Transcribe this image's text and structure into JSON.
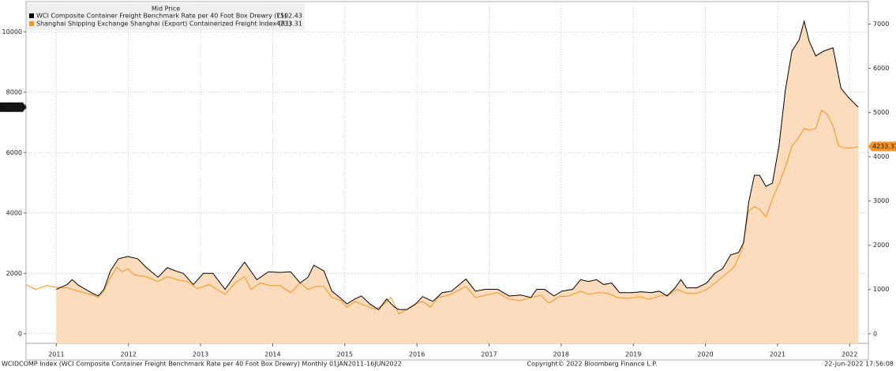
{
  "chart_data": {
    "type": "line",
    "legend_title": "Mid Price",
    "footer_left": "WCIDCOMP Index (WCI Composite Container Freight Benchmark Rate per 40 Foot Box Drewry)  Monthly 01JAN2011-16JUN2022",
    "footer_center": "Copyright© 2022 Bloomberg Finance L.P.",
    "footer_right": "22-Jun-2022 17:56:08",
    "xlim": [
      2011.08,
      2022.76
    ],
    "xticks": [
      {
        "value": 2011.5,
        "label": "2011"
      },
      {
        "value": 2012.5,
        "label": "2012"
      },
      {
        "value": 2013.5,
        "label": "2013"
      },
      {
        "value": 2014.5,
        "label": "2014"
      },
      {
        "value": 2015.5,
        "label": "2015"
      },
      {
        "value": 2016.5,
        "label": "2016"
      },
      {
        "value": 2017.5,
        "label": "2017"
      },
      {
        "value": 2018.5,
        "label": "2018"
      },
      {
        "value": 2019.5,
        "label": "2019"
      },
      {
        "value": 2020.5,
        "label": "2020"
      },
      {
        "value": 2021.5,
        "label": "2021"
      },
      {
        "value": 2022.5,
        "label": "2022"
      }
    ],
    "ylim": [
      -320,
      11000
    ],
    "yticks": [
      0,
      2000,
      4000,
      6000,
      8000,
      10000
    ],
    "y2lim": [
      -218,
      7509
    ],
    "y2ticks": [
      0,
      1000,
      2000,
      3000,
      4000,
      5000,
      6000,
      7000
    ],
    "grid": true,
    "series": [
      {
        "name": "WCI Composite Container Freight Benchmark Rate per 40 Foot Box Drewry  (L1)",
        "color": "#000000",
        "fill": "#fcdcbc",
        "axis": "y",
        "x": [
          2011.5,
          2011.65,
          2011.72,
          2011.81,
          2012.01,
          2012.08,
          2012.16,
          2012.25,
          2012.36,
          2012.49,
          2012.63,
          2012.74,
          2012.91,
          2013.04,
          2013.15,
          2013.26,
          2013.4,
          2013.54,
          2013.67,
          2013.84,
          2013.98,
          2014.11,
          2014.28,
          2014.44,
          2014.6,
          2014.75,
          2014.88,
          2014.99,
          2015.07,
          2015.21,
          2015.32,
          2015.43,
          2015.53,
          2015.64,
          2015.73,
          2015.86,
          2015.97,
          2016.08,
          2016.19,
          2016.25,
          2016.36,
          2016.47,
          2016.58,
          2016.72,
          2016.85,
          2016.98,
          2017.18,
          2017.31,
          2017.45,
          2017.62,
          2017.78,
          2017.94,
          2018.08,
          2018.16,
          2018.27,
          2018.4,
          2018.51,
          2018.66,
          2018.77,
          2018.88,
          2018.99,
          2019.09,
          2019.2,
          2019.31,
          2019.48,
          2019.61,
          2019.75,
          2019.86,
          2019.97,
          2020.08,
          2020.16,
          2020.24,
          2020.38,
          2020.52,
          2020.63,
          2020.74,
          2020.85,
          2020.96,
          2021.03,
          2021.1,
          2021.18,
          2021.25,
          2021.34,
          2021.43,
          2021.52,
          2021.61,
          2021.7,
          2021.8,
          2021.87,
          2021.94,
          2022.03,
          2022.14,
          2022.27,
          2022.38,
          2022.49,
          2022.62
        ],
        "values": [
          1470,
          1630,
          1790,
          1600,
          1330,
          1250,
          1470,
          2080,
          2480,
          2560,
          2480,
          2210,
          1870,
          2190,
          2080,
          2000,
          1630,
          2000,
          2000,
          1470,
          1950,
          2370,
          1790,
          2050,
          2030,
          2050,
          1680,
          1870,
          2270,
          2080,
          1410,
          1200,
          990,
          1150,
          1250,
          960,
          800,
          1150,
          880,
          800,
          800,
          960,
          1230,
          1070,
          1360,
          1410,
          1810,
          1410,
          1470,
          1470,
          1250,
          1280,
          1200,
          1470,
          1470,
          1250,
          1410,
          1470,
          1790,
          1730,
          1790,
          1630,
          1680,
          1360,
          1360,
          1390,
          1360,
          1410,
          1250,
          1520,
          1790,
          1520,
          1520,
          1680,
          2000,
          2160,
          2610,
          2690,
          3010,
          4350,
          5250,
          5250,
          4880,
          4990,
          6210,
          8080,
          9360,
          9730,
          10350,
          9680,
          9200,
          9360,
          9470,
          8130,
          7810,
          7502.43
        ]
      },
      {
        "name": "Shanghai Shipping Exchange Shanghai (Export) Containerized Freight Index  (R1)",
        "color": "#f7931e",
        "axis": "y2",
        "x": [
          2011.08,
          2011.21,
          2011.37,
          2011.5,
          2011.65,
          2011.81,
          2012.01,
          2012.08,
          2012.16,
          2012.25,
          2012.34,
          2012.41,
          2012.49,
          2012.58,
          2012.74,
          2012.91,
          2013.04,
          2013.18,
          2013.32,
          2013.45,
          2013.62,
          2013.73,
          2013.84,
          2013.98,
          2014.11,
          2014.2,
          2014.33,
          2014.46,
          2014.6,
          2014.75,
          2014.88,
          2014.99,
          2015.1,
          2015.21,
          2015.32,
          2015.45,
          2015.53,
          2015.64,
          2015.78,
          2015.92,
          2016.03,
          2016.14,
          2016.25,
          2016.36,
          2016.47,
          2016.58,
          2016.69,
          2016.79,
          2016.94,
          2017.05,
          2017.18,
          2017.31,
          2017.45,
          2017.62,
          2017.78,
          2017.94,
          2018.08,
          2018.22,
          2018.33,
          2018.47,
          2018.6,
          2018.77,
          2018.88,
          2019.02,
          2019.15,
          2019.28,
          2019.42,
          2019.59,
          2019.72,
          2019.86,
          2020.0,
          2020.11,
          2020.24,
          2020.38,
          2020.52,
          2020.66,
          2020.79,
          2020.9,
          2021.01,
          2021.1,
          2021.18,
          2021.25,
          2021.34,
          2021.43,
          2021.54,
          2021.61,
          2021.7,
          2021.8,
          2021.87,
          2021.94,
          2022.03,
          2022.11,
          2022.19,
          2022.27,
          2022.35,
          2022.44,
          2022.54,
          2022.62
        ],
        "values": [
          1110,
          1000,
          1090,
          1050,
          1040,
          960,
          870,
          820,
          960,
          1270,
          1510,
          1400,
          1470,
          1330,
          1290,
          1180,
          1290,
          1220,
          1180,
          1020,
          1110,
          1000,
          890,
          1150,
          1290,
          1000,
          1150,
          1090,
          1090,
          930,
          1150,
          1000,
          1070,
          1070,
          820,
          750,
          600,
          730,
          640,
          550,
          650,
          820,
          450,
          550,
          670,
          730,
          600,
          820,
          870,
          960,
          1070,
          820,
          870,
          930,
          780,
          750,
          820,
          870,
          690,
          840,
          850,
          960,
          890,
          930,
          910,
          820,
          800,
          840,
          780,
          850,
          890,
          1000,
          910,
          910,
          1000,
          1180,
          1360,
          1510,
          1910,
          2780,
          2870,
          2820,
          2640,
          3050,
          3470,
          3780,
          4240,
          4450,
          4640,
          4600,
          4640,
          5050,
          4960,
          4690,
          4240,
          4200,
          4200,
          4233.31
        ]
      }
    ]
  }
}
